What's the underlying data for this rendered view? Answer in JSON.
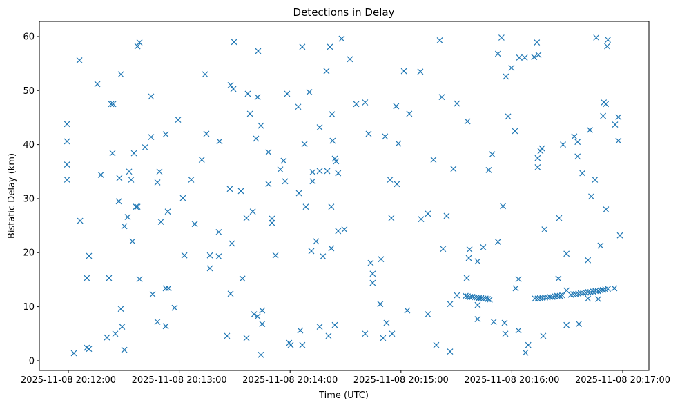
{
  "chart_data": {
    "type": "scatter",
    "title": "Detections in Delay",
    "xlabel": "Time (UTC)",
    "ylabel": "Bistatic Delay (km)",
    "x_units": "seconds after 2025-11-08 20:12:00",
    "xlim": [
      -15.7,
      314.2
    ],
    "ylim": [
      -1.8,
      62.8
    ],
    "grid": false,
    "marker": "x",
    "color": "#1f77b4",
    "xticks": [
      {
        "value": 0,
        "label": "2025-11-08 20:12:00"
      },
      {
        "value": 60,
        "label": "2025-11-08 20:13:00"
      },
      {
        "value": 120,
        "label": "2025-11-08 20:14:00"
      },
      {
        "value": 180,
        "label": "2025-11-08 20:15:00"
      },
      {
        "value": 240,
        "label": "2025-11-08 20:16:00"
      },
      {
        "value": 300,
        "label": "2025-11-08 20:17:00"
      }
    ],
    "yticks": [
      {
        "value": 0,
        "label": "0"
      },
      {
        "value": 10,
        "label": "10"
      },
      {
        "value": 20,
        "label": "20"
      },
      {
        "value": 30,
        "label": "30"
      },
      {
        "value": 40,
        "label": "40"
      },
      {
        "value": 50,
        "label": "50"
      },
      {
        "value": 60,
        "label": "60"
      }
    ],
    "points": [
      [
        -0.7,
        43.8
      ],
      [
        -0.7,
        40.6
      ],
      [
        -0.7,
        36.3
      ],
      [
        -0.7,
        33.5
      ],
      [
        3,
        1.4
      ],
      [
        6,
        55.6
      ],
      [
        6.4,
        25.9
      ],
      [
        10,
        15.3
      ],
      [
        10,
        2.4
      ],
      [
        11.2,
        2.2
      ],
      [
        11.2,
        19.4
      ],
      [
        15.7,
        51.2
      ],
      [
        17.6,
        34.4
      ],
      [
        20.9,
        4.3
      ],
      [
        22,
        15.3
      ],
      [
        23.2,
        47.5
      ],
      [
        24.3,
        47.5
      ],
      [
        23.9,
        38.4
      ],
      [
        25.4,
        5.0
      ],
      [
        28.4,
        53.0
      ],
      [
        27.6,
        33.8
      ],
      [
        27.3,
        29.5
      ],
      [
        28.4,
        9.6
      ],
      [
        29.1,
        6.3
      ],
      [
        30.3,
        2.0
      ],
      [
        30.3,
        24.9
      ],
      [
        32.1,
        26.6
      ],
      [
        32.9,
        35.0
      ],
      [
        34,
        33.5
      ],
      [
        34.7,
        22.1
      ],
      [
        35.5,
        38.4
      ],
      [
        36.6,
        28.5
      ],
      [
        37.4,
        28.5
      ],
      [
        37.4,
        58.2
      ],
      [
        38.5,
        58.9
      ],
      [
        38.5,
        15.1
      ],
      [
        41.5,
        39.5
      ],
      [
        44.8,
        41.4
      ],
      [
        44.8,
        48.9
      ],
      [
        45.6,
        12.3
      ],
      [
        48.2,
        7.2
      ],
      [
        48.2,
        33.0
      ],
      [
        49.3,
        35.0
      ],
      [
        50.1,
        25.7
      ],
      [
        52.7,
        41.9
      ],
      [
        52.7,
        6.4
      ],
      [
        52.7,
        13.4
      ],
      [
        54.2,
        13.4
      ],
      [
        53.8,
        27.6
      ],
      [
        57.5,
        9.8
      ],
      [
        59.4,
        44.6
      ],
      [
        62,
        30.1
      ],
      [
        62.8,
        19.5
      ],
      [
        66.5,
        33.5
      ],
      [
        68.4,
        25.3
      ],
      [
        72.2,
        37.2
      ],
      [
        74,
        53.0
      ],
      [
        74.7,
        42.0
      ],
      [
        76.6,
        19.5
      ],
      [
        76.6,
        17.1
      ],
      [
        81.4,
        23.8
      ],
      [
        81.8,
        40.6
      ],
      [
        81.4,
        19.3
      ],
      [
        85.9,
        4.6
      ],
      [
        87.4,
        31.8
      ],
      [
        87.8,
        51.0
      ],
      [
        89.3,
        50.3
      ],
      [
        87.8,
        12.4
      ],
      [
        88.5,
        21.7
      ],
      [
        89.7,
        59.0
      ],
      [
        93.4,
        31.4
      ],
      [
        94.2,
        15.2
      ],
      [
        96.4,
        26.4
      ],
      [
        96.4,
        4.2
      ],
      [
        97.1,
        49.4
      ],
      [
        98.3,
        45.7
      ],
      [
        99.8,
        27.6
      ],
      [
        100.5,
        8.6
      ],
      [
        101.6,
        41.1
      ],
      [
        102.4,
        8.2
      ],
      [
        102.4,
        48.8
      ],
      [
        102.7,
        57.3
      ],
      [
        104.2,
        43.5
      ],
      [
        104.9,
        9.3
      ],
      [
        104.9,
        6.8
      ],
      [
        104.2,
        1.1
      ],
      [
        108.3,
        38.6
      ],
      [
        108.3,
        32.7
      ],
      [
        110.2,
        26.3
      ],
      [
        110.2,
        25.5
      ],
      [
        112.1,
        19.5
      ],
      [
        114.7,
        35.4
      ],
      [
        116.5,
        37.0
      ],
      [
        117.3,
        33.2
      ],
      [
        118.4,
        49.4
      ],
      [
        119.5,
        3.3
      ],
      [
        120.3,
        2.9
      ],
      [
        124.4,
        47.0
      ],
      [
        124.8,
        31.0
      ],
      [
        125.5,
        5.6
      ],
      [
        126.6,
        2.9
      ],
      [
        126.6,
        58.1
      ],
      [
        127.8,
        40.1
      ],
      [
        128.5,
        28.5
      ],
      [
        130.4,
        49.7
      ],
      [
        131.5,
        20.3
      ],
      [
        132.2,
        34.9
      ],
      [
        132.2,
        33.2
      ],
      [
        134.1,
        22.1
      ],
      [
        136,
        43.2
      ],
      [
        136,
        35.1
      ],
      [
        136,
        6.3
      ],
      [
        137.8,
        19.3
      ],
      [
        139.7,
        53.6
      ],
      [
        140.1,
        35.1
      ],
      [
        140.8,
        4.6
      ],
      [
        141.6,
        58.1
      ],
      [
        142.3,
        28.5
      ],
      [
        142.3,
        20.8
      ],
      [
        142.7,
        45.6
      ],
      [
        143,
        40.7
      ],
      [
        144.2,
        37.4
      ],
      [
        144.9,
        36.9
      ],
      [
        144.2,
        6.6
      ],
      [
        146,
        34.7
      ],
      [
        146,
        24.0
      ],
      [
        147.9,
        59.6
      ],
      [
        149.4,
        24.3
      ],
      [
        152.4,
        55.8
      ],
      [
        155.8,
        47.5
      ],
      [
        160.6,
        47.8
      ],
      [
        160.6,
        5.0
      ],
      [
        162.5,
        42.0
      ],
      [
        163.6,
        18.1
      ],
      [
        164.7,
        16.1
      ],
      [
        164.7,
        14.4
      ],
      [
        168.8,
        10.5
      ],
      [
        169.2,
        18.8
      ],
      [
        170.3,
        4.2
      ],
      [
        171.4,
        41.5
      ],
      [
        172.2,
        7.0
      ],
      [
        174.1,
        33.5
      ],
      [
        174.8,
        26.4
      ],
      [
        175.2,
        5.0
      ],
      [
        177.4,
        47.1
      ],
      [
        177.8,
        32.7
      ],
      [
        178.6,
        40.2
      ],
      [
        181.6,
        53.6
      ],
      [
        183.4,
        9.3
      ],
      [
        184.5,
        45.7
      ],
      [
        190.5,
        53.5
      ],
      [
        190.9,
        26.2
      ],
      [
        194.6,
        27.2
      ],
      [
        194.6,
        8.6
      ],
      [
        197.6,
        37.2
      ],
      [
        199.1,
        2.9
      ],
      [
        201,
        59.3
      ],
      [
        202.1,
        48.8
      ],
      [
        202.8,
        20.7
      ],
      [
        204.7,
        26.8
      ],
      [
        206.6,
        1.7
      ],
      [
        206.6,
        10.5
      ],
      [
        208.4,
        35.5
      ],
      [
        210.3,
        12.1
      ],
      [
        210.3,
        47.6
      ],
      [
        215,
        12.0
      ],
      [
        216.2,
        11.9
      ],
      [
        217.4,
        11.8
      ],
      [
        218.6,
        11.8
      ],
      [
        219.8,
        11.7
      ],
      [
        221,
        11.7
      ],
      [
        222.2,
        11.6
      ],
      [
        223.4,
        11.6
      ],
      [
        224.6,
        11.5
      ],
      [
        225.8,
        11.5
      ],
      [
        227,
        11.4
      ],
      [
        228,
        11.3
      ],
      [
        216,
        44.3
      ],
      [
        215.6,
        15.3
      ],
      [
        216.7,
        19.0
      ],
      [
        217.1,
        20.6
      ],
      [
        221.5,
        10.3
      ],
      [
        221.5,
        7.7
      ],
      [
        221.5,
        18.4
      ],
      [
        224.5,
        21.0
      ],
      [
        227.5,
        35.3
      ],
      [
        229.4,
        38.2
      ],
      [
        230.2,
        7.2
      ],
      [
        232.5,
        56.8
      ],
      [
        232.5,
        22.0
      ],
      [
        234.4,
        59.8
      ],
      [
        235.2,
        28.6
      ],
      [
        236.1,
        7.0
      ],
      [
        236.5,
        5.0
      ],
      [
        236.8,
        52.6
      ],
      [
        238,
        45.2
      ],
      [
        239.8,
        54.2
      ],
      [
        241.7,
        42.5
      ],
      [
        242.1,
        13.4
      ],
      [
        243.6,
        15.1
      ],
      [
        243.6,
        5.6
      ],
      [
        244,
        56.1
      ],
      [
        247,
        56.1
      ],
      [
        247.4,
        1.5
      ],
      [
        248.9,
        2.9
      ],
      [
        252.1,
        56.2
      ],
      [
        253.6,
        58.9
      ],
      [
        254.4,
        56.6
      ],
      [
        252.5,
        11.5
      ],
      [
        254,
        11.5
      ],
      [
        255.3,
        11.6
      ],
      [
        256.6,
        11.6
      ],
      [
        258,
        11.7
      ],
      [
        259.3,
        11.7
      ],
      [
        260.6,
        11.8
      ],
      [
        262,
        11.8
      ],
      [
        263.3,
        11.9
      ],
      [
        264.6,
        12.0
      ],
      [
        266,
        12.0
      ],
      [
        267.3,
        12.1
      ],
      [
        272,
        12.2
      ],
      [
        273.3,
        12.3
      ],
      [
        274.6,
        12.3
      ],
      [
        276,
        12.4
      ],
      [
        277.3,
        12.5
      ],
      [
        278.6,
        12.5
      ],
      [
        280,
        12.6
      ],
      [
        281.3,
        12.7
      ],
      [
        282.6,
        12.7
      ],
      [
        284,
        12.8
      ],
      [
        285.3,
        12.9
      ],
      [
        286.6,
        12.9
      ],
      [
        288,
        13.0
      ],
      [
        289.3,
        13.1
      ],
      [
        290.6,
        13.2
      ],
      [
        292,
        13.3
      ],
      [
        254,
        37.5
      ],
      [
        254,
        35.8
      ],
      [
        255.5,
        38.8
      ],
      [
        256.3,
        39.3
      ],
      [
        257.7,
        24.3
      ],
      [
        257,
        4.6
      ],
      [
        265.6,
        26.4
      ],
      [
        265.2,
        15.2
      ],
      [
        267.7,
        40.0
      ],
      [
        269.6,
        19.8
      ],
      [
        269.6,
        6.6
      ],
      [
        269.6,
        13.0
      ],
      [
        273.8,
        41.5
      ],
      [
        275.6,
        40.5
      ],
      [
        275.6,
        37.8
      ],
      [
        276.3,
        6.8
      ],
      [
        278.2,
        34.7
      ],
      [
        281.2,
        18.6
      ],
      [
        282.2,
        42.7
      ],
      [
        281.2,
        11.5
      ],
      [
        283,
        30.4
      ],
      [
        285,
        33.5
      ],
      [
        285.7,
        59.8
      ],
      [
        286.8,
        11.4
      ],
      [
        288,
        21.3
      ],
      [
        289.4,
        45.3
      ],
      [
        289.8,
        47.8
      ],
      [
        290.9,
        47.5
      ],
      [
        291.6,
        58.2
      ],
      [
        292,
        59.4
      ],
      [
        291,
        28.0
      ],
      [
        295.5,
        13.4
      ],
      [
        295.9,
        43.7
      ],
      [
        297.7,
        45.1
      ],
      [
        297.7,
        40.7
      ],
      [
        298.5,
        23.2
      ]
    ]
  }
}
